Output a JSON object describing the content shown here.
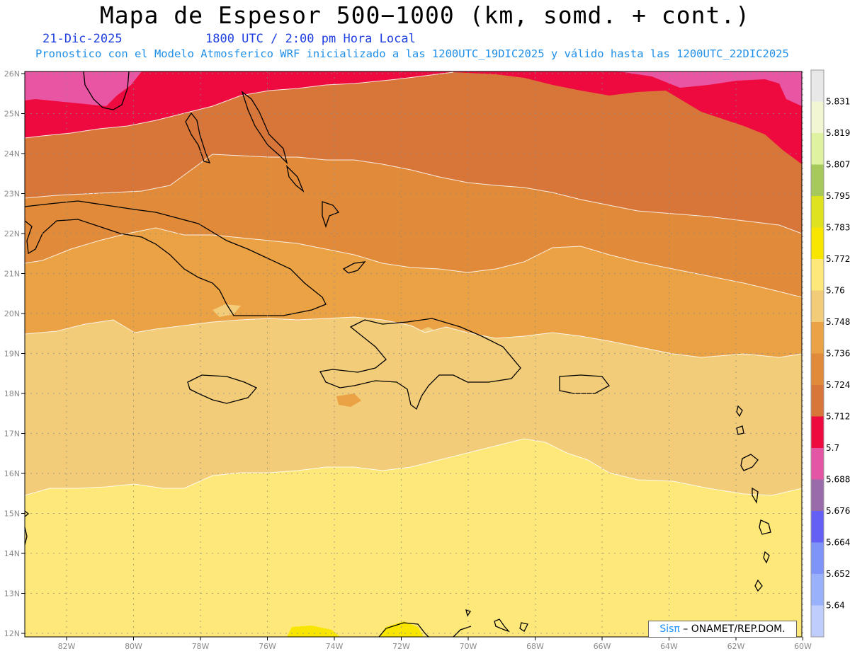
{
  "header": {
    "title": "Mapa de Espesor 500−1000 (km, somd. + cont.)",
    "date": "21-Dic-2025",
    "time": "1800 UTC / 2:00 pm Hora Local",
    "description": "Pronostico con el Modelo Atmosferico WRF inicializado a las 1200UTC_19DIC2025 y válido hasta las  1200UTC_22DIC2025"
  },
  "axes": {
    "lat_labels": [
      "26N",
      "25N",
      "24N",
      "23N",
      "22N",
      "21N",
      "20N",
      "19N",
      "18N",
      "17N",
      "16N",
      "15N",
      "14N",
      "13N",
      "12N"
    ],
    "lon_labels": [
      "82W",
      "80W",
      "78W",
      "76W",
      "74W",
      "72W",
      "70W",
      "68W",
      "66W",
      "64W",
      "62W",
      "60W"
    ]
  },
  "colorbar": {
    "levels": [
      "5.831",
      "5.819",
      "5.807",
      "5.795",
      "5.783",
      "5.772",
      "5.76",
      "5.748",
      "5.736",
      "5.724",
      "5.712",
      "5.7",
      "5.688",
      "5.676",
      "5.664",
      "5.652",
      "5.64"
    ],
    "colors": [
      "#e8e8e8",
      "#f3f6d2",
      "#dff2a0",
      "#a7c95c",
      "#dfe21e",
      "#f8e600",
      "#ffe87a",
      "#f2cc78",
      "#eba245",
      "#e18a3a",
      "#d87538",
      "#ee0a3e",
      "#e555a5",
      "#9a6bab",
      "#6560f5",
      "#7f94f9",
      "#99b0fb",
      "#bfcdfd"
    ]
  },
  "map": {
    "band_colors": [
      "#e855a3",
      "#ee0a3e",
      "#d87538",
      "#e18a3a",
      "#eba245",
      "#f2cc78",
      "#ffe87a",
      "#f8e600"
    ]
  },
  "credit": {
    "brand": "Sisπ",
    "text": " –  ONAMET/REP.DOM."
  }
}
